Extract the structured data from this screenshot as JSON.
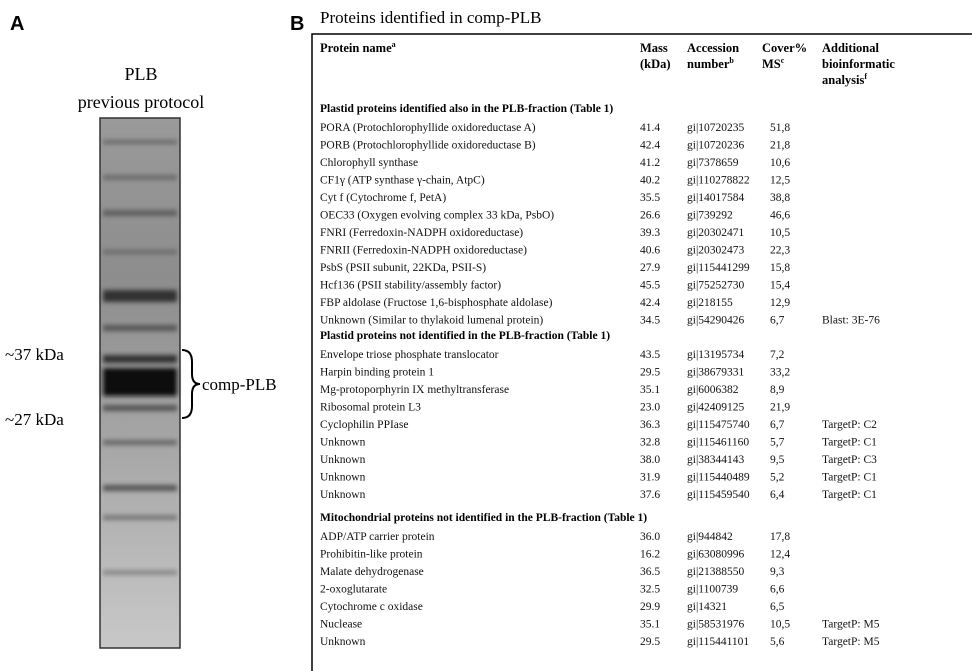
{
  "panel_a": {
    "label": "A",
    "title_lines": [
      "PLB",
      "previous protocol"
    ],
    "markers": [
      "~37 kDa",
      "~27 kDa"
    ],
    "bracket_label": "comp-PLB"
  },
  "panel_b": {
    "label": "B",
    "title": "Proteins identified in comp-PLB",
    "header": [
      {
        "lines": [
          "Protein name"
        ],
        "sup": "a"
      },
      {
        "lines": [
          "Mass",
          "(kDa)"
        ]
      },
      {
        "lines": [
          "Accession",
          "number"
        ],
        "sup": "b"
      },
      {
        "lines": [
          "Cover%",
          "MS"
        ],
        "sup": "c"
      },
      {
        "lines": [
          "Additional",
          "bioinformatic",
          "analysis"
        ],
        "sup": "f"
      }
    ],
    "sections": [
      {
        "heading": "Plastid proteins identified also in the PLB-fraction (Table 1)",
        "rows": [
          {
            "name": "PORA (Protochlorophyllide oxidoreductase A)",
            "mass": "41.4",
            "accession": "gi|10720235",
            "cover": "51,8"
          },
          {
            "name": "PORB (Protochlorophyllide oxidoreductase B)",
            "mass": "42.4",
            "accession": "gi|10720236",
            "cover": "21,8"
          },
          {
            "name": "Chlorophyll synthase",
            "mass": "41.2",
            "accession": "gi|7378659",
            "cover": "10,6"
          },
          {
            "name": "CF1γ (ATP synthase γ-chain, AtpC)",
            "mass": "40.2",
            "accession": "gi|110278822",
            "cover": "12,5"
          },
          {
            "name": "Cyt f (Cytochrome f, PetA)",
            "mass": "35.5",
            "accession": "gi|14017584",
            "cover": "38,8"
          },
          {
            "name": "OEC33 (Oxygen evolving complex 33 kDa, PsbO)",
            "mass": "26.6",
            "accession": "gi|739292",
            "cover": "46,6"
          },
          {
            "name": "FNRI (Ferredoxin-NADPH oxidoreductase)",
            "mass": "39.3",
            "accession": "gi|20302471",
            "cover": "10,5"
          },
          {
            "name": "FNRII (Ferredoxin-NADPH oxidoreductase)",
            "mass": "40.6",
            "accession": "gi|20302473",
            "cover": "22,3"
          },
          {
            "name": "PsbS (PSII subunit, 22KDa, PSII-S)",
            "mass": "27.9",
            "accession": "gi|115441299",
            "cover": "15,8"
          },
          {
            "name": "Hcf136 (PSII stability/assembly factor)",
            "mass": "45.5",
            "accession": "gi|75252730",
            "cover": "15,4"
          },
          {
            "name": "FBP aldolase (Fructose 1,6-bisphosphate aldolase)",
            "mass": "42.4",
            "accession": "gi|218155",
            "cover": "12,9"
          },
          {
            "name": "Unknown (Similar to thylakoid lumenal protein)",
            "mass": "34.5",
            "accession": "gi|54290426",
            "cover": "6,7",
            "analysis": "Blast: 3E-76"
          }
        ]
      },
      {
        "heading": "Plastid proteins not identified in the PLB-fraction (Table 1)",
        "rows": [
          {
            "name": "Envelope triose phosphate translocator",
            "mass": "43.5",
            "accession": "gi|13195734",
            "cover": "7,2"
          },
          {
            "name": "Harpin binding protein 1",
            "mass": "29.5",
            "accession": "gi|38679331",
            "cover": "33,2"
          },
          {
            "name": "Mg-protoporphyrin IX methyltransferase",
            "mass": "35.1",
            "accession": "gi|6006382",
            "cover": "8,9"
          },
          {
            "name": "Ribosomal protein L3",
            "mass": "23.0",
            "accession": "gi|42409125",
            "cover": "21,9"
          },
          {
            "name": "Cyclophilin PPIase",
            "mass": "36.3",
            "accession": "gi|115475740",
            "cover": "6,7",
            "analysis": "TargetP: C2"
          },
          {
            "name": "Unknown",
            "mass": "32.8",
            "accession": "gi|115461160",
            "cover": "5,7",
            "analysis": "TargetP: C1"
          },
          {
            "name": "Unknown",
            "mass": "38.0",
            "accession": "gi|38344143",
            "cover": "9,5",
            "analysis": "TargetP: C3"
          },
          {
            "name": "Unknown",
            "mass": "31.9",
            "accession": "gi|115440489",
            "cover": "5,2",
            "analysis": "TargetP: C1"
          },
          {
            "name": "Unknown",
            "mass": "37.6",
            "accession": "gi|115459540",
            "cover": "6,4",
            "analysis": "TargetP: C1"
          }
        ]
      },
      {
        "heading": "Mitochondrial proteins not identified in the PLB-fraction (Table 1)",
        "rows": [
          {
            "name": "ADP/ATP carrier protein",
            "mass": "36.0",
            "accession": "gi|944842",
            "cover": "17,8"
          },
          {
            "name": "Prohibitin-like protein",
            "mass": "16.2",
            "accession": "gi|63080996",
            "cover": "12,4"
          },
          {
            "name": "Malate dehydrogenase",
            "mass": "36.5",
            "accession": "gi|21388550",
            "cover": "9,3"
          },
          {
            "name": "2-oxoglutarate",
            "mass": "32.5",
            "accession": "gi|1100739",
            "cover": "6,6"
          },
          {
            "name": "Cytochrome c oxidase",
            "mass": "29.9",
            "accession": "gi|14321",
            "cover": "6,5"
          },
          {
            "name": "Nuclease",
            "mass": "35.1",
            "accession": "gi|58531976",
            "cover": "10,5",
            "analysis": "TargetP: M5"
          },
          {
            "name": "Unknown",
            "mass": "29.5",
            "accession": "gi|115441101",
            "cover": "5,6",
            "analysis": "TargetP: M5"
          }
        ]
      }
    ]
  }
}
